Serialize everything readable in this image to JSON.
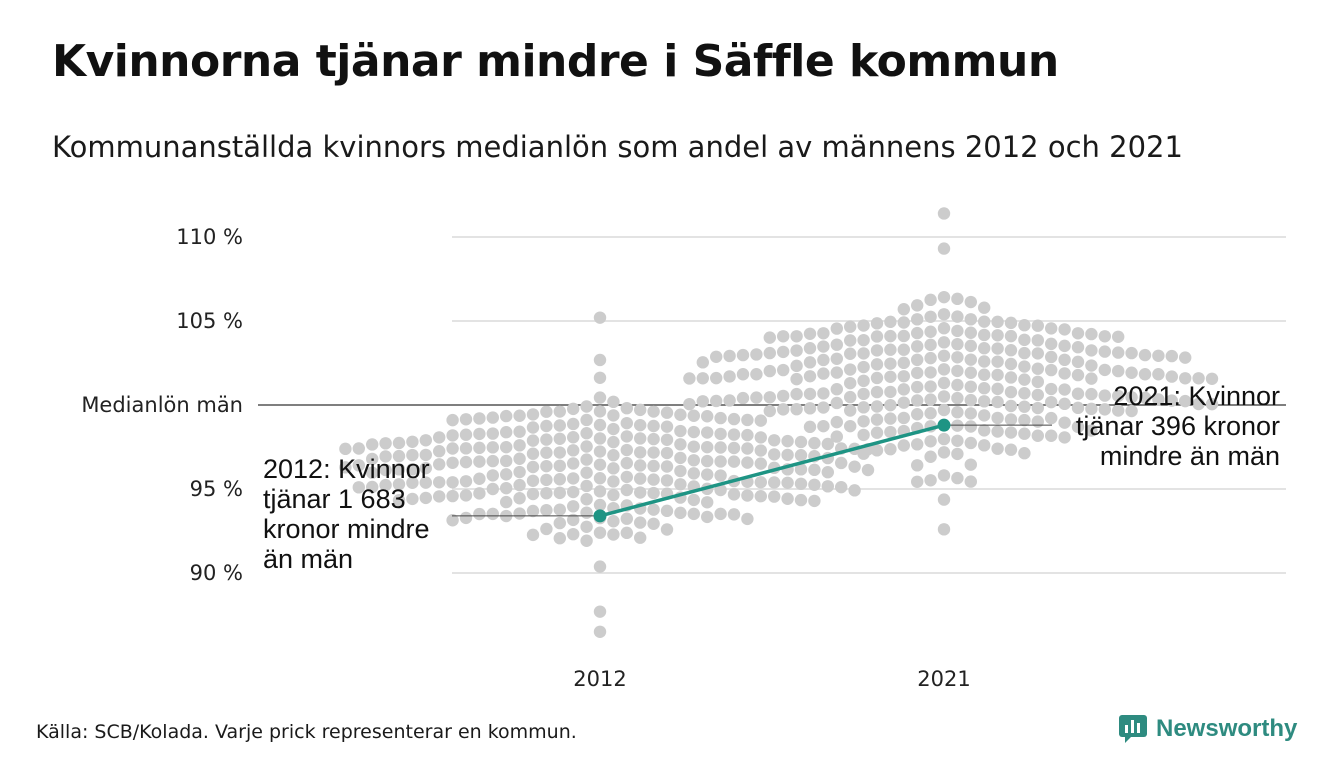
{
  "title": "Kvinnorna tjänar mindre i Säffle kommun",
  "subtitle": "Kommunanställda kvinnors medianlön som andel av männens 2012 och 2021",
  "source": "Källa: SCB/Kolada. Varje prick representerar en kommun.",
  "brand": "Newsworthy",
  "colors": {
    "highlight": "#1e9484",
    "dots": "#cccccc",
    "grid": "#e3e3e3",
    "reference_line": "#333333",
    "brand": "#2e8b80"
  },
  "chart_data": {
    "type": "scatter",
    "categories": [
      "2012",
      "2021"
    ],
    "y_tick_labels": [
      "90 %",
      "95 %",
      "Medianlön män",
      "105 %",
      "110 %"
    ],
    "y_ticks": [
      90,
      95,
      100,
      105,
      110
    ],
    "ylim": [
      86,
      111.5
    ],
    "reference_line": {
      "value": 100,
      "label": "Medianlön män"
    },
    "grid": true,
    "distribution": {
      "2012": {
        "median": 96.3,
        "min": 86.5,
        "max": 105.2,
        "count": 290
      },
      "2021": {
        "median": 101.2,
        "min": 92.6,
        "max": 111.4,
        "count": 290
      }
    },
    "series": [
      {
        "name": "Säffle",
        "values": [
          93.4,
          98.8
        ]
      }
    ],
    "annotations": [
      {
        "category": "2012",
        "text": "2012: Kvinnor tjänar 1 683 kronor mindre än män",
        "lines": [
          "2012: Kvinnor",
          "tjänar 1 683",
          "kronor mindre",
          "än män"
        ]
      },
      {
        "category": "2021",
        "text": "2021: Kvinnor tjänar 396 kronor mindre än män",
        "lines": [
          "2021: Kvinnor",
          "tjänar 396 kronor",
          "mindre än män"
        ]
      }
    ]
  }
}
